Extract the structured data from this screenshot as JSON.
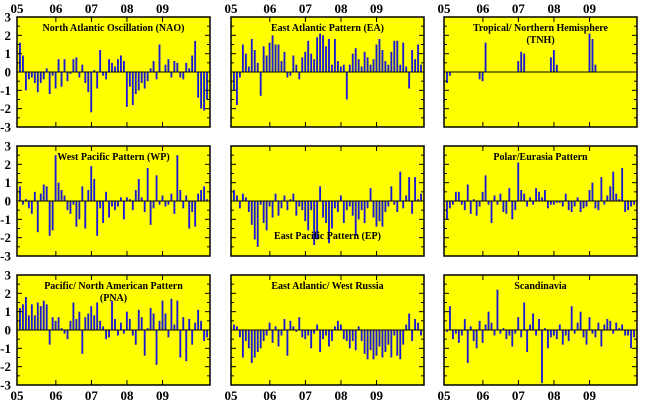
{
  "figure": {
    "background_color": "#ffffff",
    "panel_fill": "#ffff00",
    "bar_color": "#1a1ad6",
    "axis_color": "#000000",
    "year_labels": [
      "05",
      "06",
      "07",
      "08",
      "09"
    ],
    "ytick_labels": [
      "3",
      "2",
      "1",
      "0",
      "-1",
      "-2",
      "-3"
    ]
  },
  "chart_data": [
    {
      "type": "bar",
      "title_lines": [
        "North Atlantic Oscillation (NAO)"
      ],
      "title_pos": "top",
      "x": {
        "start": "2005-01",
        "frequency": "monthly",
        "tick_labels": [
          "05",
          "06",
          "07",
          "08",
          "09"
        ]
      },
      "ylim": [
        -3,
        3
      ],
      "values": [
        1.6,
        0.9,
        -1.0,
        -0.4,
        -0.3,
        -0.6,
        -1.1,
        -0.6,
        -0.4,
        0.2,
        -1.2,
        -0.2,
        -0.9,
        0.7,
        -0.8,
        0.7,
        -0.5,
        -0.1,
        0.7,
        0.8,
        -0.3,
        0.4,
        -0.6,
        -1.1,
        -2.2,
        0.1,
        -0.9,
        1.2,
        -0.2,
        -0.4,
        0.7,
        0.5,
        0.3,
        0.7,
        0.9,
        0.6,
        -1.9,
        -0.8,
        -1.8,
        -1.2,
        -1.0,
        -0.6,
        -0.9,
        -0.5,
        0.2,
        0.6,
        -0.4,
        1.5,
        0.0,
        0.4,
        0.7,
        -0.3,
        0.6,
        0.5,
        -0.3,
        -0.4,
        0.5,
        0.2,
        0.9,
        1.7,
        -1.4,
        -2.0,
        -2.1,
        -1.5
      ]
    },
    {
      "type": "bar",
      "title_lines": [
        "East Atlantic Pattern (EA)"
      ],
      "title_pos": "top",
      "x": {
        "start": "2005-01",
        "frequency": "monthly",
        "tick_labels": [
          "05",
          "06",
          "07",
          "08",
          "09"
        ]
      },
      "ylim": [
        -3,
        3
      ],
      "values": [
        -1.0,
        -1.8,
        -0.3,
        1.5,
        1.0,
        0.3,
        1.8,
        1.2,
        0.5,
        -1.3,
        1.4,
        0.9,
        1.6,
        2.0,
        1.5,
        1.5,
        0.6,
        1.1,
        -0.3,
        -0.2,
        0.9,
        0.4,
        -0.4,
        0.8,
        1.1,
        1.7,
        1.0,
        0.7,
        1.9,
        2.1,
        2.0,
        1.4,
        1.8,
        0.4,
        1.8,
        0.6,
        0.3,
        0.4,
        -1.5,
        0.4,
        1.0,
        1.3,
        0.7,
        0.3,
        1.1,
        0.8,
        0.4,
        0.7,
        1.5,
        1.8,
        1.2,
        0.6,
        0.4,
        1.1,
        1.7,
        1.7,
        0.4,
        1.6,
        0.3,
        -0.9,
        1.2,
        0.7,
        1.5,
        0.4
      ]
    },
    {
      "type": "bar",
      "title_lines": [
        "Tropical/ Northern Hemisphere",
        "(TNH)"
      ],
      "title_pos": "top",
      "x": {
        "start": "2005-01",
        "frequency": "monthly",
        "tick_labels": [
          "05",
          "06",
          "07",
          "08",
          "09"
        ]
      },
      "ylim": [
        -3,
        3
      ],
      "values": [
        -0.6,
        -0.2,
        0,
        0,
        0,
        0,
        0,
        0,
        0,
        0,
        0,
        -0.4,
        -0.5,
        1.6,
        0,
        0,
        0,
        0,
        0,
        0,
        0,
        0,
        0,
        0,
        0.6,
        1.1,
        1.0,
        0,
        0,
        0,
        0,
        0,
        0,
        0,
        0,
        0.8,
        1.2,
        0.4,
        0,
        0,
        0,
        0,
        0,
        0,
        0,
        0,
        0,
        0,
        2.1,
        1.8,
        0.4,
        0,
        0,
        0,
        0,
        0,
        0,
        0,
        0,
        0,
        0,
        0,
        0,
        0
      ]
    },
    {
      "type": "bar",
      "title_lines": [
        "West Pacific Pattern (WP)"
      ],
      "title_pos": "top",
      "x": {
        "start": "2005-01",
        "frequency": "monthly",
        "tick_labels": [
          "05",
          "06",
          "07",
          "08",
          "09"
        ]
      },
      "ylim": [
        -3,
        3
      ],
      "values": [
        0.8,
        -0.2,
        0.1,
        -0.4,
        -0.7,
        0.5,
        -1.7,
        0.4,
        0.9,
        0.8,
        -1.9,
        -1.6,
        2.5,
        1.0,
        0.6,
        0.3,
        -0.5,
        -0.7,
        -0.2,
        -1.4,
        -1.0,
        0.8,
        -1.5,
        0.6,
        1.9,
        1.2,
        -1.9,
        -0.4,
        -1.2,
        0.5,
        -0.9,
        -0.3,
        -0.5,
        -0.3,
        0.2,
        -1.0,
        0.2,
        0.1,
        -0.5,
        0.6,
        1.2,
        0.2,
        -0.6,
        1.8,
        -1.3,
        -0.4,
        1.4,
        -0.2,
        0.3,
        -0.3,
        -0.2,
        0.4,
        -0.7,
        2.5,
        0.6,
        -0.4,
        0.3,
        -1.5,
        -0.6,
        -1.4,
        0.4,
        0.6,
        0.8,
        0.1
      ]
    },
    {
      "type": "bar",
      "title_lines": [
        "East Pacific Pattern (EP)"
      ],
      "title_pos": "bottom",
      "x": {
        "start": "2005-01",
        "frequency": "monthly",
        "tick_labels": [
          "05",
          "06",
          "07",
          "08",
          "09"
        ]
      },
      "ylim": [
        -3,
        3
      ],
      "values": [
        0.6,
        0.3,
        -0.4,
        0.4,
        0.2,
        -0.6,
        -1.3,
        -2.1,
        -2.5,
        -0.2,
        -1.2,
        -1.6,
        -0.3,
        -0.9,
        0.4,
        -0.8,
        -0.4,
        0.3,
        -0.5,
        0.1,
        0.4,
        -0.8,
        -0.3,
        -0.5,
        -1.1,
        -1.6,
        -0.5,
        -2.4,
        -2.1,
        0.8,
        -0.9,
        -1.2,
        -2.3,
        -1.5,
        -0.4,
        -0.6,
        0.3,
        -1.2,
        -0.5,
        -0.3,
        -0.8,
        -1.9,
        -1.0,
        -0.5,
        -1.2,
        -0.4,
        0.7,
        -0.9,
        -1.4,
        -1.1,
        -1.4,
        -0.6,
        -0.3,
        0.8,
        -0.2,
        -0.6,
        1.6,
        -0.4,
        0.3,
        1.3,
        -0.7,
        1.3,
        0.1,
        0.4
      ]
    },
    {
      "type": "bar",
      "title_lines": [
        "Polar/Eurasia Pattern"
      ],
      "title_pos": "top",
      "x": {
        "start": "2005-01",
        "frequency": "monthly",
        "tick_labels": [
          "05",
          "06",
          "07",
          "08",
          "09"
        ]
      },
      "ylim": [
        -3,
        3
      ],
      "values": [
        -1.0,
        -0.4,
        -0.2,
        0.5,
        0.5,
        -0.2,
        -0.5,
        0.9,
        -0.7,
        0.1,
        -0.8,
        -0.3,
        0.5,
        1.4,
        -0.2,
        -1.2,
        0.3,
        -0.2,
        0.4,
        -0.6,
        -0.7,
        0.7,
        -1.0,
        -0.5,
        2.1,
        0.6,
        0.4,
        -0.3,
        0.2,
        -0.2,
        0.7,
        0.5,
        0.2,
        0.6,
        -0.4,
        -0.2,
        -0.2,
        -0.1,
        -0.1,
        -0.3,
        0.4,
        -0.5,
        -0.6,
        -0.3,
        0.2,
        -0.6,
        -0.4,
        -0.3,
        0.6,
        1.0,
        -0.4,
        -0.5,
        1.3,
        -0.2,
        0.3,
        0.8,
        1.6,
        0.4,
        0.1,
        1.8,
        -0.6,
        -0.5,
        -0.3,
        -0.2
      ]
    },
    {
      "type": "bar",
      "title_lines": [
        "Pacific/ North American Pattern",
        "(PNA)"
      ],
      "title_pos": "top",
      "x": {
        "start": "2005-01",
        "frequency": "monthly",
        "tick_labels": [
          "05",
          "06",
          "07",
          "08",
          "09"
        ]
      },
      "ylim": [
        -3,
        3
      ],
      "values": [
        1.2,
        1.4,
        1.8,
        0.8,
        1.4,
        0.8,
        1.5,
        1.3,
        1.6,
        1.4,
        -0.8,
        0.7,
        0.5,
        0.7,
        0.1,
        -0.2,
        -0.5,
        0.5,
        1.5,
        0.6,
        1.0,
        -1.3,
        0.7,
        0.9,
        1.3,
        0.8,
        1.5,
        0.5,
        0.2,
        -0.5,
        -0.4,
        1.6,
        0.6,
        -0.3,
        0.4,
        -0.2,
        1.0,
        0.6,
        -0.3,
        -0.8,
        1.1,
        0.7,
        -1.4,
        0.1,
        1.2,
        0.9,
        -1.9,
        0.5,
        1.6,
        0.9,
        -0.4,
        1.7,
        0.3,
        1.6,
        -1.5,
        0.7,
        -1.7,
        0.6,
        -0.8,
        0.4,
        1.1,
        0.5,
        -0.6,
        -0.4
      ]
    },
    {
      "type": "bar",
      "title_lines": [
        "East Atlantic/ West Russia"
      ],
      "title_pos": "top",
      "x": {
        "start": "2005-01",
        "frequency": "monthly",
        "tick_labels": [
          "05",
          "06",
          "07",
          "08",
          "09"
        ]
      },
      "ylim": [
        -3,
        3
      ],
      "values": [
        0.3,
        0.2,
        -0.4,
        -1.5,
        -0.6,
        -1.0,
        -1.8,
        -1.5,
        -1.2,
        -1.0,
        -0.6,
        -0.3,
        0.4,
        -0.7,
        0.2,
        -0.9,
        -0.3,
        0.6,
        -1.4,
        0.5,
        0.2,
        -0.1,
        0.7,
        -0.4,
        -0.5,
        -0.3,
        -1.0,
        -0.2,
        0.3,
        -1.2,
        -0.5,
        -0.3,
        -0.9,
        -0.6,
        0.2,
        0.5,
        0.3,
        -0.5,
        -0.6,
        -1.0,
        -0.6,
        -1.1,
        0.2,
        -0.6,
        -1.3,
        -1.6,
        -1.1,
        -1.6,
        -1.4,
        -0.9,
        -1.5,
        -1.2,
        -0.8,
        -1.5,
        -0.3,
        -1.4,
        -1.6,
        -0.8,
        0.3,
        0.9,
        -0.6,
        0.6,
        0.4,
        -0.3
      ]
    },
    {
      "type": "bar",
      "title_lines": [
        "Scandinavia"
      ],
      "title_pos": "top",
      "x": {
        "start": "2005-01",
        "frequency": "monthly",
        "tick_labels": [
          "05",
          "06",
          "07",
          "08",
          "09"
        ]
      },
      "ylim": [
        -3,
        3
      ],
      "values": [
        -0.1,
        1.3,
        -0.5,
        -0.2,
        -0.7,
        -0.3,
        0.6,
        -1.8,
        0.2,
        -0.6,
        -1.0,
        0.5,
        -0.7,
        0.3,
        1.0,
        0.4,
        -0.3,
        2.2,
        -0.2,
        0.1,
        -0.5,
        -0.3,
        -0.9,
        -0.2,
        0.7,
        -0.4,
        1.5,
        -1.2,
        0.3,
        0.9,
        -0.3,
        0.6,
        -2.9,
        0.1,
        -1.0,
        -0.4,
        -0.3,
        -0.5,
        0.3,
        -0.8,
        -0.3,
        -0.6,
        1.3,
        -0.2,
        0.4,
        1.0,
        -0.4,
        -0.8,
        0.7,
        -0.2,
        -0.4,
        0.4,
        -0.9,
        0.3,
        0.6,
        0.5,
        -0.2,
        0.4,
        0.1,
        0.3,
        -0.3,
        -0.3,
        -1.0,
        -0.4
      ]
    }
  ]
}
